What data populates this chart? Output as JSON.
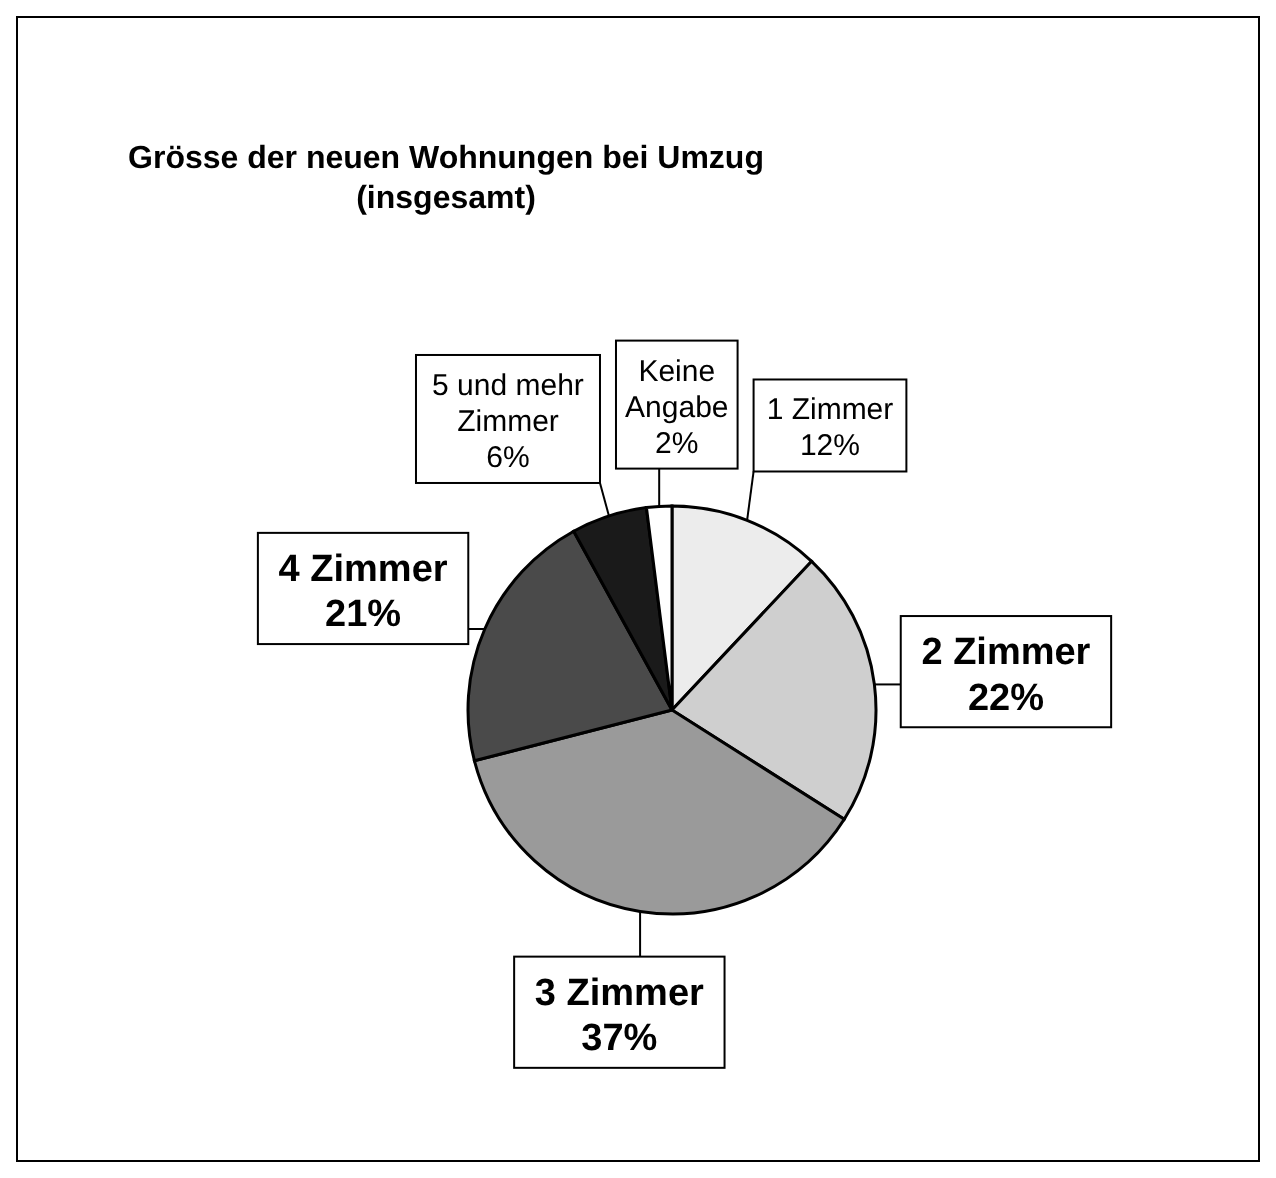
{
  "chart_data": {
    "type": "pie",
    "title": "Grösse der neuen Wohnungen bei Umzug (insgesamt)",
    "categories": [
      "1 Zimmer",
      "2 Zimmer",
      "3 Zimmer",
      "4 Zimmer",
      "5 und mehr Zimmer",
      "Keine Angabe"
    ],
    "values": [
      12,
      22,
      37,
      21,
      6,
      2
    ],
    "value_labels": [
      "12%",
      "22%",
      "37%",
      "21%",
      "6%",
      "2%"
    ],
    "colors": [
      "#ececec",
      "#cfcfcf",
      "#9a9a9a",
      "#4a4a4a",
      "#1a1a1a",
      "#ffffff"
    ]
  }
}
